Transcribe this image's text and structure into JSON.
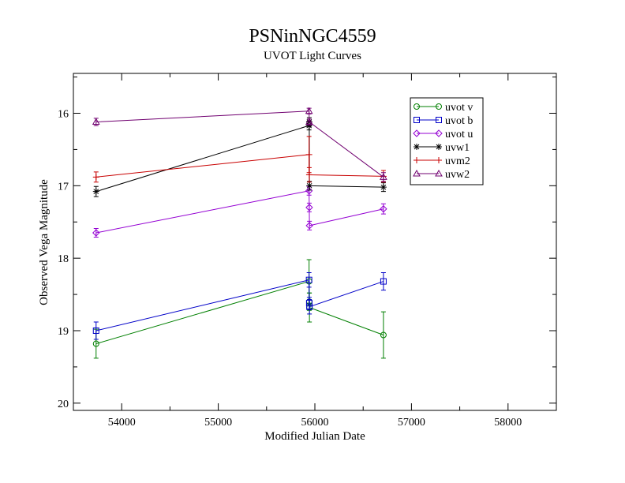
{
  "chart_data": {
    "type": "scatter",
    "title": "PSNinNGC4559",
    "subtitle": "UVOT Light Curves",
    "xlabel": "Modified Julian Date",
    "ylabel": "Observed Vega Magnitude",
    "xlim": [
      53500,
      58500
    ],
    "ylim": [
      20.1,
      15.45
    ],
    "y_inverted": true,
    "xticks": [
      54000,
      55000,
      56000,
      57000,
      58000
    ],
    "xtick_labels": [
      "54000",
      "55000",
      "56000",
      "57000",
      "58000"
    ],
    "yticks": [
      16,
      17,
      18,
      19,
      20
    ],
    "ytick_labels": [
      "16",
      "17",
      "18",
      "19",
      "20"
    ],
    "legend_position": "top-right",
    "grid": false,
    "series": [
      {
        "name": "uvot v",
        "color": "#007f00",
        "marker": "circle",
        "x": [
          53735,
          55940,
          55942,
          55944,
          56710
        ],
        "y": [
          19.18,
          18.32,
          18.6,
          18.68,
          19.06
        ],
        "err": [
          0.2,
          0.3,
          0.12,
          0.2,
          0.32
        ]
      },
      {
        "name": "uvot b",
        "color": "#0000c8",
        "marker": "square",
        "x": [
          53735,
          55940,
          55942,
          55944,
          56710
        ],
        "y": [
          19.0,
          18.3,
          18.62,
          18.67,
          18.32
        ],
        "err": [
          0.12,
          0.1,
          0.08,
          0.1,
          0.12
        ]
      },
      {
        "name": "uvot u",
        "color": "#9400d3",
        "marker": "diamond",
        "x": [
          53735,
          55940,
          55942,
          55944,
          56710
        ],
        "y": [
          17.65,
          17.07,
          17.3,
          17.55,
          17.32
        ],
        "err": [
          0.06,
          0.06,
          0.06,
          0.06,
          0.07
        ]
      },
      {
        "name": "uvw1",
        "color": "#000000",
        "marker": "star",
        "x": [
          53735,
          55940,
          55942,
          55944,
          56710
        ],
        "y": [
          17.08,
          16.17,
          16.12,
          17.0,
          17.02
        ],
        "err": [
          0.07,
          0.06,
          0.06,
          0.06,
          0.06
        ]
      },
      {
        "name": "uvm2",
        "color": "#c80000",
        "marker": "plus",
        "x": [
          53735,
          55940,
          55942,
          56710
        ],
        "y": [
          16.88,
          16.57,
          16.85,
          16.87
        ],
        "err": [
          0.07,
          0.25,
          0.1,
          0.08
        ]
      },
      {
        "name": "uvw2",
        "color": "#700070",
        "marker": "triangle",
        "x": [
          53735,
          55940,
          55942,
          56710
        ],
        "y": [
          16.12,
          15.97,
          16.12,
          16.88
        ],
        "err": [
          0.05,
          0.04,
          0.04,
          0.06
        ]
      }
    ]
  }
}
